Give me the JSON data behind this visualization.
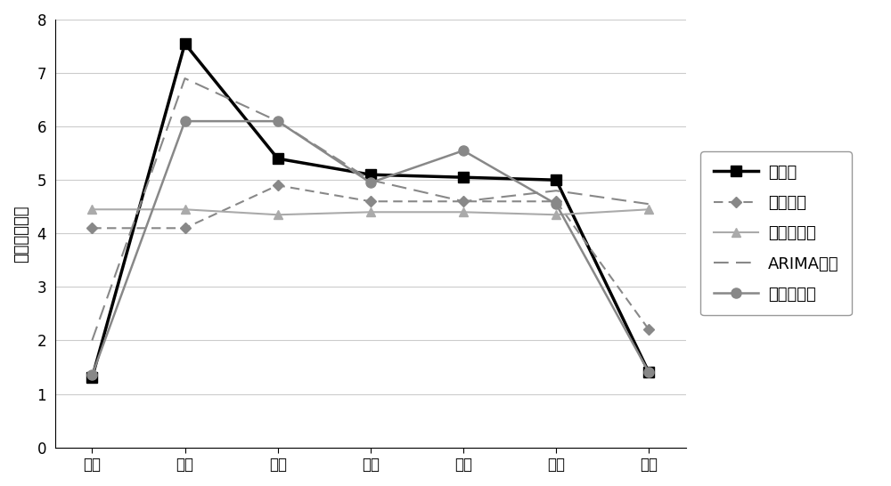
{
  "categories": [
    "周日",
    "周一",
    "周二",
    "周三",
    "周四",
    "周五",
    "周六"
  ],
  "series_order": [
    "实际值",
    "滑动平均",
    "双指数平滑",
    "ARIMA模型",
    "本发明方法"
  ],
  "series": {
    "实际值": {
      "values": [
        1.3,
        7.55,
        5.4,
        5.1,
        5.05,
        5.0,
        1.4
      ],
      "color": "#000000",
      "linewidth": 2.5,
      "linestyle": "-",
      "marker": "s",
      "markersize": 8
    },
    "滑动平均": {
      "values": [
        4.1,
        4.1,
        4.9,
        4.6,
        4.6,
        4.6,
        2.2
      ],
      "color": "#888888",
      "linewidth": 1.5,
      "linestyle": "--",
      "marker": "D",
      "markersize": 6
    },
    "双指数平滑": {
      "values": [
        4.45,
        4.45,
        4.35,
        4.4,
        4.4,
        4.35,
        4.45
      ],
      "color": "#aaaaaa",
      "linewidth": 1.5,
      "linestyle": "-",
      "marker": "^",
      "markersize": 7
    },
    "ARIMA模型": {
      "values": [
        2.0,
        6.9,
        6.1,
        5.0,
        4.6,
        4.8,
        4.55
      ],
      "color": "#888888",
      "linewidth": 1.5,
      "linestyle": "--",
      "marker": null,
      "markersize": 0
    },
    "本发明方法": {
      "values": [
        1.35,
        6.1,
        6.1,
        4.95,
        5.55,
        4.55,
        1.4
      ],
      "color": "#888888",
      "linewidth": 1.8,
      "linestyle": "-",
      "marker": "o",
      "markersize": 8
    }
  },
  "ylabel": "交通拥堵指数",
  "ylim": [
    0,
    8
  ],
  "yticks": [
    0,
    1,
    2,
    3,
    4,
    5,
    6,
    7,
    8
  ],
  "background_color": "#ffffff",
  "grid_color": "#cccccc",
  "font_size": 13,
  "tick_fontsize": 12
}
